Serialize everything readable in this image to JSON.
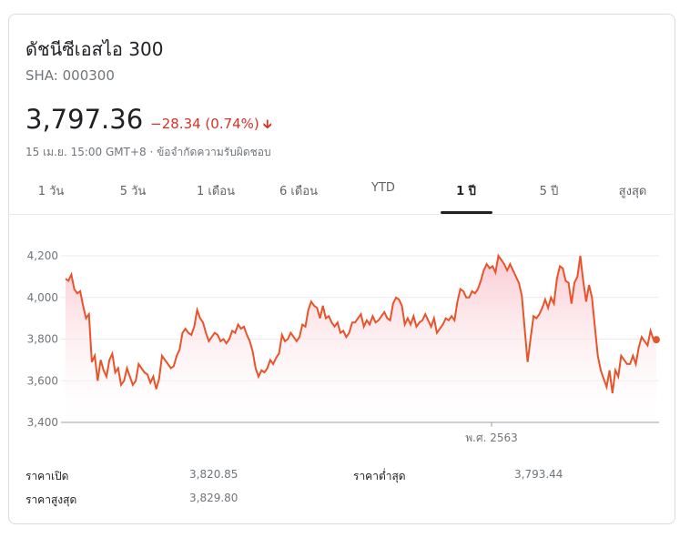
{
  "header": {
    "title": "ดัชนีซีเอสไอ 300",
    "ticker": "SHA: 000300",
    "price": "3,797.36",
    "change": "−28.34 (0.74%)",
    "change_color": "#d93025",
    "timestamp": "15 เม.ย. 15:00 GMT+8 · ข้อจำกัดความรับผิดชอบ",
    "arrow_icon": "down-arrow-icon"
  },
  "tabs": [
    {
      "label": "1 วัน"
    },
    {
      "label": "5 วัน"
    },
    {
      "label": "1 เดือน"
    },
    {
      "label": "6 เดือน"
    },
    {
      "label": "YTD"
    },
    {
      "label": "1 ปี",
      "active": true
    },
    {
      "label": "5 ปี"
    },
    {
      "label": "สูงสุด"
    }
  ],
  "stats": {
    "open_label": "ราคาเปิด",
    "open_value": "3,820.85",
    "low_label": "ราคาต่ำสุด",
    "low_value": "3,793.44",
    "high_label": "ราคาสูงสุด",
    "high_value": "3,829.80"
  },
  "chart_data": {
    "type": "area",
    "ylim": [
      3400,
      4200
    ],
    "yticks": [
      "4,200",
      "4,000",
      "3,800",
      "3,600",
      "3,400"
    ],
    "ytick_values": [
      4200,
      4000,
      3800,
      3600,
      3400
    ],
    "x_marker_label": "พ.ศ. 2563",
    "line_color": "#e8542a",
    "fill_color": "#f9c8d0",
    "grid": true,
    "series": [
      {
        "values": [
          4090,
          4080,
          4110,
          4040,
          4020,
          4030,
          3960,
          3900,
          3920,
          3690,
          3720,
          3600,
          3700,
          3650,
          3620,
          3700,
          3730,
          3640,
          3660,
          3580,
          3600,
          3660,
          3620,
          3580,
          3600,
          3680,
          3660,
          3640,
          3630,
          3590,
          3620,
          3560,
          3610,
          3720,
          3700,
          3680,
          3660,
          3670,
          3720,
          3750,
          3830,
          3850,
          3830,
          3820,
          3860,
          3940,
          3900,
          3880,
          3830,
          3790,
          3810,
          3830,
          3820,
          3790,
          3800,
          3780,
          3800,
          3840,
          3830,
          3870,
          3850,
          3860,
          3820,
          3790,
          3740,
          3660,
          3620,
          3650,
          3640,
          3660,
          3700,
          3680,
          3710,
          3730,
          3820,
          3790,
          3800,
          3830,
          3810,
          3790,
          3810,
          3870,
          3860,
          3940,
          3980,
          3960,
          3950,
          3900,
          3960,
          3900,
          3910,
          3880,
          3860,
          3880,
          3830,
          3840,
          3810,
          3830,
          3880,
          3880,
          3900,
          3920,
          3860,
          3890,
          3870,
          3910,
          3880,
          3890,
          3910,
          3930,
          3900,
          3890,
          3970,
          4000,
          3990,
          3960,
          3870,
          3900,
          3870,
          3910,
          3860,
          3880,
          3890,
          3920,
          3890,
          3860,
          3900,
          3830,
          3850,
          3870,
          3900,
          3890,
          3910,
          3890,
          3980,
          4040,
          4030,
          4000,
          4000,
          4030,
          4020,
          4040,
          4080,
          4130,
          4160,
          4140,
          4150,
          4120,
          4200,
          4180,
          4160,
          4130,
          4160,
          4130,
          4100,
          4070,
          4010,
          3850,
          3690,
          3800,
          3910,
          3900,
          3920,
          3950,
          3990,
          3950,
          4000,
          3970,
          4090,
          4150,
          4140,
          4080,
          4070,
          3970,
          4070,
          4100,
          4200,
          4080,
          3980,
          4060,
          4000,
          3860,
          3720,
          3650,
          3610,
          3570,
          3650,
          3540,
          3650,
          3620,
          3720,
          3700,
          3680,
          3680,
          3720,
          3680,
          3760,
          3810,
          3790,
          3770,
          3840,
          3800,
          3797
        ]
      }
    ]
  }
}
